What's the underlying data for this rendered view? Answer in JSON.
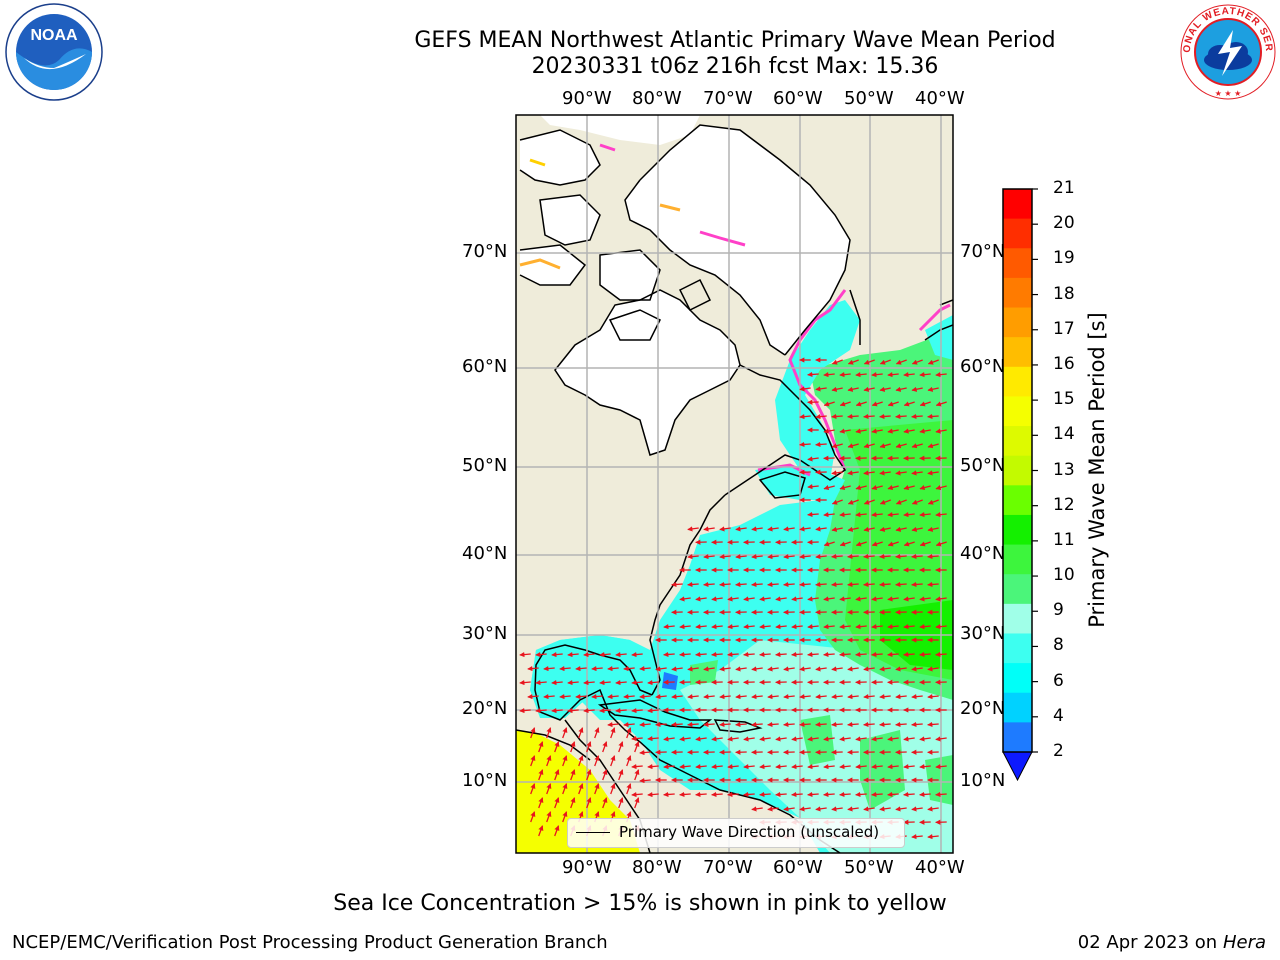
{
  "title_line1": "GEFS MEAN Northwest Atlantic Primary Wave Mean Period",
  "title_line2": "20230331 t06z 216h fcst   Max: 15.36",
  "logos": {
    "left": "NOAA",
    "right": "NATIONAL WEATHER SERVICE"
  },
  "colors": {
    "land": "#efecda",
    "ice": "#ffffff",
    "arrows": "#e8141e",
    "grid": "#b4b4b4",
    "coast": "#000000"
  },
  "map": {
    "lon_ticks": [
      "90°W",
      "80°W",
      "70°W",
      "60°W",
      "50°W",
      "40°W"
    ],
    "lat_ticks": [
      "70°N",
      "60°N",
      "50°N",
      "40°N",
      "30°N",
      "20°N",
      "10°N"
    ],
    "legend_label": "Primary Wave Direction (unscaled)"
  },
  "colorbar": {
    "label": "Primary Wave Mean Period [s]",
    "ticks": [
      "21",
      "20",
      "19",
      "18",
      "17",
      "16",
      "15",
      "14",
      "13",
      "12",
      "11",
      "10",
      "9",
      "8",
      "6",
      "4",
      "2"
    ],
    "colors": [
      "#ff0000",
      "#ff2e00",
      "#ff5a00",
      "#ff7b00",
      "#ff9d00",
      "#ffbd00",
      "#ffea00",
      "#f5ff00",
      "#ddfa00",
      "#c3fa00",
      "#6aff00",
      "#14f000",
      "#3df53d",
      "#4bf57a",
      "#a0ffe8",
      "#3dfff0",
      "#00fff8",
      "#00d2ff",
      "#1e7bff"
    ],
    "extend_color": "#0d1aff"
  },
  "sea_ice_note": "Sea Ice Concentration > 15% is shown in pink to yellow",
  "footer_left": "NCEP/EMC/Verification Post Processing Product Generation Branch",
  "footer_right_date": "02 Apr 2023 on ",
  "footer_right_host": "Hera"
}
